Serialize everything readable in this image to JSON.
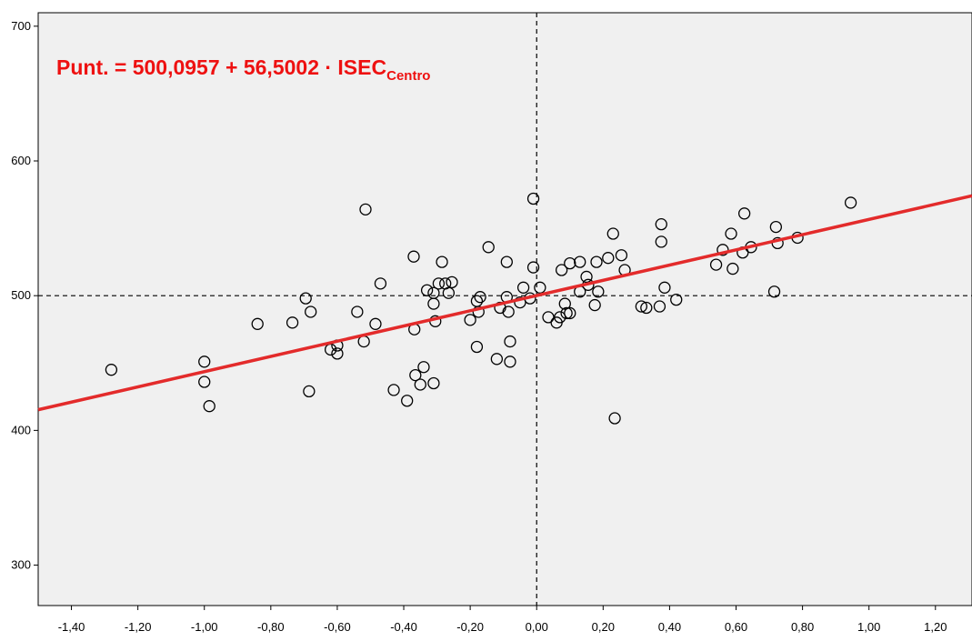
{
  "chart_data": {
    "type": "scatter",
    "title": "",
    "xlabel": "",
    "ylabel": "",
    "xlim": [
      -1.5,
      1.31
    ],
    "ylim": [
      270,
      710
    ],
    "x_ticks": [
      -1.4,
      -1.2,
      -1.0,
      -0.8,
      -0.6,
      -0.4,
      -0.2,
      0.0,
      0.2,
      0.4,
      0.6,
      0.8,
      1.0,
      1.2
    ],
    "x_tick_labels": [
      "-1,40",
      "-1,20",
      "-1,00",
      "-0,80",
      "-0,60",
      "-0,40",
      "-0,20",
      "0,00",
      "0,20",
      "0,40",
      "0,60",
      "0,80",
      "1,00",
      "1,20"
    ],
    "y_ticks": [
      300,
      400,
      500,
      600,
      700
    ],
    "y_tick_labels": [
      "300",
      "400",
      "500",
      "600",
      "700"
    ],
    "plot_background": "#f0f0f0",
    "reference_lines": {
      "x": 0.0,
      "y": 500,
      "style": "dashed",
      "color": "#000000"
    },
    "regression_line": {
      "intercept": 500.0957,
      "slope": 56.5002,
      "color": "#e32b2b"
    },
    "annotation": {
      "text_main": "Punt. = 500,0957 + 56,5002 · ISEC",
      "text_sub": "Centro",
      "color": "#ee1111"
    },
    "series": [
      {
        "marker": "open-circle",
        "color": "#000000",
        "points": [
          [
            -1.28,
            445
          ],
          [
            -1.0,
            451
          ],
          [
            -1.0,
            436
          ],
          [
            -0.985,
            418
          ],
          [
            -0.84,
            479
          ],
          [
            -0.735,
            480
          ],
          [
            -0.695,
            498
          ],
          [
            -0.68,
            488
          ],
          [
            -0.685,
            429
          ],
          [
            -0.62,
            460
          ],
          [
            -0.6,
            463
          ],
          [
            -0.6,
            457
          ],
          [
            -0.54,
            488
          ],
          [
            -0.52,
            466
          ],
          [
            -0.515,
            564
          ],
          [
            -0.485,
            479
          ],
          [
            -0.47,
            509
          ],
          [
            -0.43,
            430
          ],
          [
            -0.39,
            422
          ],
          [
            -0.37,
            529
          ],
          [
            -0.368,
            475
          ],
          [
            -0.365,
            441
          ],
          [
            -0.35,
            434
          ],
          [
            -0.34,
            447
          ],
          [
            -0.33,
            504
          ],
          [
            -0.31,
            502
          ],
          [
            -0.31,
            494
          ],
          [
            -0.305,
            481
          ],
          [
            -0.31,
            435
          ],
          [
            -0.295,
            509
          ],
          [
            -0.285,
            525
          ],
          [
            -0.275,
            509
          ],
          [
            -0.265,
            502
          ],
          [
            -0.255,
            510
          ],
          [
            -0.2,
            482
          ],
          [
            -0.18,
            462
          ],
          [
            -0.18,
            496
          ],
          [
            -0.175,
            488
          ],
          [
            -0.17,
            499
          ],
          [
            -0.145,
            536
          ],
          [
            -0.12,
            453
          ],
          [
            -0.11,
            491
          ],
          [
            -0.09,
            525
          ],
          [
            -0.09,
            499
          ],
          [
            -0.085,
            488
          ],
          [
            -0.08,
            466
          ],
          [
            -0.08,
            451
          ],
          [
            -0.05,
            495
          ],
          [
            -0.04,
            506
          ],
          [
            -0.02,
            498
          ],
          [
            -0.01,
            572
          ],
          [
            -0.01,
            521
          ],
          [
            0.01,
            506
          ],
          [
            0.035,
            484
          ],
          [
            0.06,
            480
          ],
          [
            0.07,
            484
          ],
          [
            0.075,
            519
          ],
          [
            0.085,
            494
          ],
          [
            0.09,
            487
          ],
          [
            0.1,
            487
          ],
          [
            0.1,
            524
          ],
          [
            0.13,
            525
          ],
          [
            0.13,
            503
          ],
          [
            0.15,
            514
          ],
          [
            0.155,
            508
          ],
          [
            0.175,
            493
          ],
          [
            0.18,
            525
          ],
          [
            0.185,
            503
          ],
          [
            0.215,
            528
          ],
          [
            0.23,
            546
          ],
          [
            0.235,
            409
          ],
          [
            0.255,
            530
          ],
          [
            0.265,
            519
          ],
          [
            0.315,
            492
          ],
          [
            0.33,
            491
          ],
          [
            0.37,
            492
          ],
          [
            0.375,
            553
          ],
          [
            0.375,
            540
          ],
          [
            0.385,
            506
          ],
          [
            0.42,
            497
          ],
          [
            0.54,
            523
          ],
          [
            0.56,
            534
          ],
          [
            0.585,
            546
          ],
          [
            0.59,
            520
          ],
          [
            0.62,
            532
          ],
          [
            0.625,
            561
          ],
          [
            0.645,
            536
          ],
          [
            0.715,
            503
          ],
          [
            0.72,
            551
          ],
          [
            0.725,
            539
          ],
          [
            0.785,
            543
          ],
          [
            0.945,
            569
          ]
        ]
      }
    ]
  }
}
